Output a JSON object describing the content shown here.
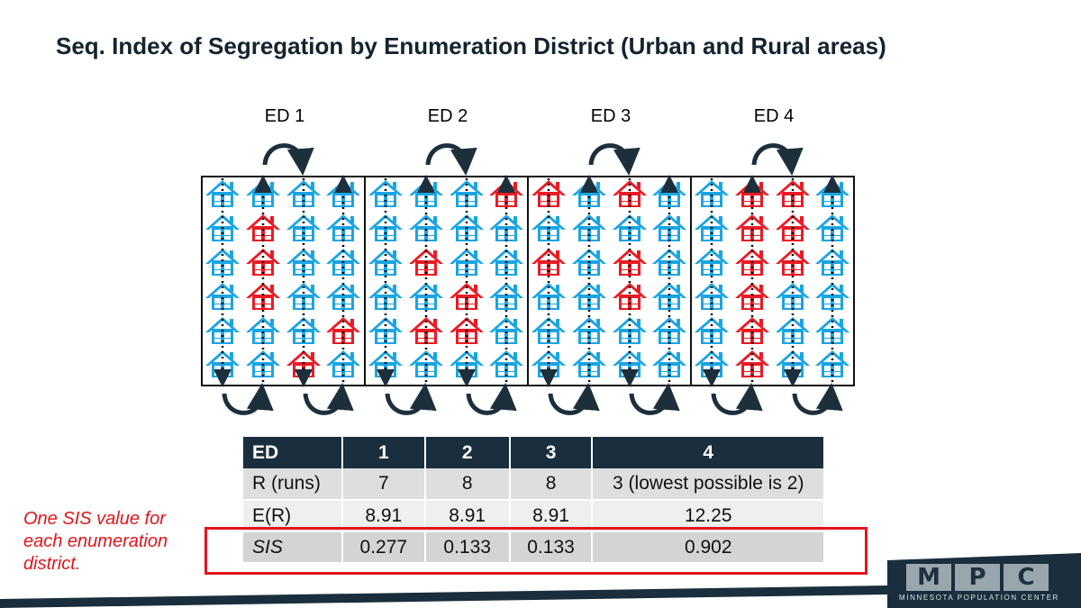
{
  "title": "Seq. Index of Segregation by Enumeration District (Urban and Rural areas)",
  "colors": {
    "blue_house": "#1aa5e3",
    "red_house": "#ea1b24",
    "navy": "#1a2e3d",
    "highlight": "#e3141b"
  },
  "districts": [
    {
      "label": "ED 1",
      "grid": [
        [
          "b",
          "b",
          "b",
          "b"
        ],
        [
          "b",
          "r",
          "b",
          "b"
        ],
        [
          "b",
          "r",
          "b",
          "b"
        ],
        [
          "b",
          "r",
          "b",
          "b"
        ],
        [
          "b",
          "b",
          "b",
          "r"
        ],
        [
          "b",
          "b",
          "r",
          "b"
        ]
      ]
    },
    {
      "label": "ED 2",
      "grid": [
        [
          "b",
          "b",
          "b",
          "r"
        ],
        [
          "b",
          "b",
          "b",
          "b"
        ],
        [
          "b",
          "r",
          "b",
          "b"
        ],
        [
          "b",
          "b",
          "r",
          "b"
        ],
        [
          "b",
          "r",
          "r",
          "b"
        ],
        [
          "b",
          "b",
          "b",
          "b"
        ]
      ]
    },
    {
      "label": "ED 3",
      "grid": [
        [
          "r",
          "b",
          "r",
          "b"
        ],
        [
          "b",
          "b",
          "b",
          "b"
        ],
        [
          "r",
          "b",
          "r",
          "b"
        ],
        [
          "b",
          "b",
          "r",
          "b"
        ],
        [
          "b",
          "b",
          "b",
          "b"
        ],
        [
          "b",
          "b",
          "b",
          "b"
        ]
      ]
    },
    {
      "label": "ED 4",
      "grid": [
        [
          "b",
          "r",
          "r",
          "b"
        ],
        [
          "b",
          "r",
          "r",
          "b"
        ],
        [
          "b",
          "r",
          "r",
          "b"
        ],
        [
          "b",
          "r",
          "b",
          "b"
        ],
        [
          "b",
          "r",
          "b",
          "b"
        ],
        [
          "b",
          "r",
          "b",
          "b"
        ]
      ]
    }
  ],
  "table": {
    "headers": [
      "ED",
      "1",
      "2",
      "3",
      "4"
    ],
    "rows": [
      [
        "R (runs)",
        "7",
        "8",
        "8",
        "3 (lowest possible is 2)"
      ],
      [
        "E(R)",
        "8.91",
        "8.91",
        "8.91",
        "12.25"
      ],
      [
        "SIS",
        "0.277",
        "0.133",
        "0.133",
        "0.902"
      ]
    ]
  },
  "side_note": "One SIS value for each enumeration district.",
  "logo": {
    "letters": [
      "M",
      "P",
      "C"
    ],
    "subtitle": "MINNESOTA POPULATION CENTER"
  }
}
